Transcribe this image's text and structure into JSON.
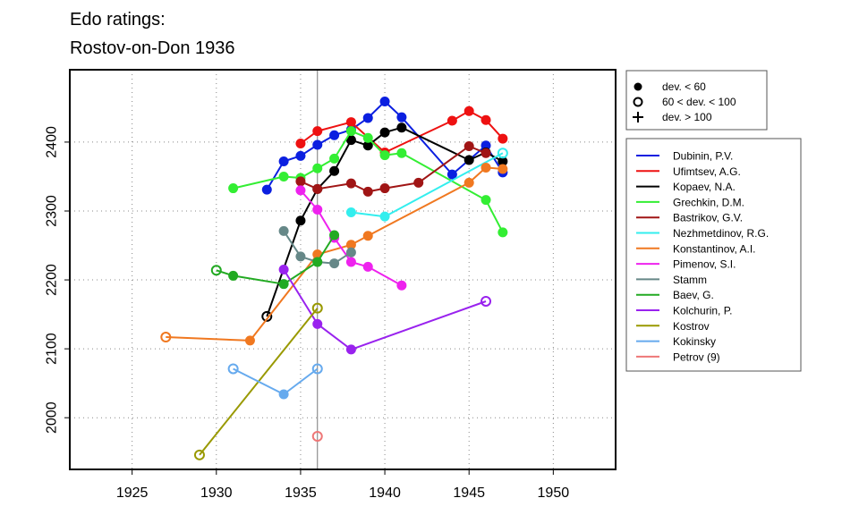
{
  "chart_data": {
    "type": "line",
    "title": [
      "Edo ratings:",
      "Rostov-on-Don 1936"
    ],
    "xlabel": "",
    "ylabel": "",
    "xlim": [
      1921.3,
      1953.7
    ],
    "ylim": [
      1925,
      2505
    ],
    "xticks": [
      1925,
      1930,
      1935,
      1940,
      1945,
      1950
    ],
    "yticks": [
      2000,
      2100,
      2200,
      2300,
      2400
    ],
    "grid": "dotted",
    "reference_line_x": 1936,
    "legend_placement": "right",
    "deviation_legend": [
      {
        "symbol": "filled",
        "label": "dev. < 60"
      },
      {
        "symbol": "open",
        "label": "60 < dev. < 100"
      },
      {
        "symbol": "plus",
        "label": "dev. > 100"
      }
    ],
    "series": [
      {
        "name": "Dubinin, P.V.",
        "color": "#0b1fe0",
        "points": [
          [
            1933,
            2331,
            "f"
          ],
          [
            1934,
            2372,
            "f"
          ],
          [
            1935,
            2380,
            "f"
          ],
          [
            1936,
            2396,
            "f"
          ],
          [
            1937,
            2410,
            "f"
          ],
          [
            1938,
            2418,
            "f"
          ],
          [
            1939,
            2435,
            "f"
          ],
          [
            1940,
            2459,
            "f"
          ],
          [
            1941,
            2436,
            "f"
          ],
          [
            1944,
            2353,
            "f"
          ],
          [
            1946,
            2395,
            "f"
          ],
          [
            1947,
            2356,
            "f"
          ]
        ]
      },
      {
        "name": "Ufimtsev, A.G.",
        "color": "#ee1111",
        "points": [
          [
            1935,
            2398,
            "f"
          ],
          [
            1936,
            2416,
            "f"
          ],
          [
            1938,
            2429,
            "f"
          ],
          [
            1940,
            2385,
            "f"
          ],
          [
            1944,
            2431,
            "f"
          ],
          [
            1945,
            2445,
            "f"
          ],
          [
            1946,
            2432,
            "f"
          ],
          [
            1947,
            2405,
            "f"
          ]
        ]
      },
      {
        "name": "Kopaev, N.A.",
        "color": "#000000",
        "points": [
          [
            1933,
            2147,
            "o"
          ],
          [
            1935,
            2286,
            "f"
          ],
          [
            1936,
            2332,
            "f"
          ],
          [
            1937,
            2358,
            "f"
          ],
          [
            1938,
            2403,
            "f"
          ],
          [
            1939,
            2395,
            "f"
          ],
          [
            1940,
            2414,
            "f"
          ],
          [
            1941,
            2421,
            "f"
          ],
          [
            1945,
            2374,
            "f"
          ],
          [
            1946,
            2385,
            "f"
          ],
          [
            1947,
            2372,
            "f"
          ]
        ]
      },
      {
        "name": "Grechkin, D.M.",
        "color": "#33ee33",
        "points": [
          [
            1931,
            2333,
            "f"
          ],
          [
            1934,
            2350,
            "f"
          ],
          [
            1935,
            2348,
            "f"
          ],
          [
            1936,
            2362,
            "f"
          ],
          [
            1937,
            2376,
            "f"
          ],
          [
            1938,
            2416,
            "f"
          ],
          [
            1939,
            2406,
            "f"
          ],
          [
            1940,
            2381,
            "f"
          ],
          [
            1941,
            2384,
            "f"
          ],
          [
            1946,
            2316,
            "f"
          ],
          [
            1947,
            2269,
            "f"
          ]
        ]
      },
      {
        "name": "Bastrikov, G.V.",
        "color": "#a01515",
        "points": [
          [
            1935,
            2343,
            "f"
          ],
          [
            1936,
            2332,
            "f"
          ],
          [
            1938,
            2340,
            "f"
          ],
          [
            1939,
            2328,
            "f"
          ],
          [
            1940,
            2333,
            "f"
          ],
          [
            1942,
            2341,
            "f"
          ],
          [
            1945,
            2394,
            "f"
          ],
          [
            1946,
            2384,
            "f"
          ]
        ]
      },
      {
        "name": "Nezhmetdinov, R.G.",
        "color": "#33eeee",
        "points": [
          [
            1938,
            2298,
            "f"
          ],
          [
            1940,
            2292,
            "f"
          ],
          [
            1947,
            2384,
            "o"
          ]
        ]
      },
      {
        "name": "Konstantinov, A.I.",
        "color": "#f07820",
        "points": [
          [
            1927,
            2117,
            "o"
          ],
          [
            1932,
            2112,
            "f"
          ],
          [
            1936,
            2237,
            "f"
          ],
          [
            1938,
            2251,
            "f"
          ],
          [
            1939,
            2264,
            "f"
          ],
          [
            1945,
            2341,
            "f"
          ],
          [
            1946,
            2363,
            "f"
          ],
          [
            1947,
            2361,
            "f"
          ]
        ]
      },
      {
        "name": "Pimenov, S.I.",
        "color": "#ee22ee",
        "points": [
          [
            1935,
            2330,
            "f"
          ],
          [
            1936,
            2302,
            "f"
          ],
          [
            1937,
            2261,
            "f"
          ],
          [
            1938,
            2226,
            "f"
          ],
          [
            1939,
            2219,
            "f"
          ],
          [
            1941,
            2192,
            "f"
          ]
        ]
      },
      {
        "name": "Stamm",
        "color": "#668888",
        "points": [
          [
            1934,
            2271,
            "f"
          ],
          [
            1935,
            2234,
            "f"
          ],
          [
            1936,
            2226,
            "f"
          ],
          [
            1937,
            2224,
            "f"
          ],
          [
            1938,
            2240,
            "f"
          ]
        ]
      },
      {
        "name": "Baev, G.",
        "color": "#22aa22",
        "points": [
          [
            1930,
            2214,
            "o"
          ],
          [
            1931,
            2206,
            "f"
          ],
          [
            1934,
            2194,
            "f"
          ],
          [
            1936,
            2226,
            "f"
          ],
          [
            1937,
            2265,
            "f"
          ]
        ]
      },
      {
        "name": "Kolchurin, P.",
        "color": "#9922ee",
        "points": [
          [
            1934,
            2215,
            "f"
          ],
          [
            1936,
            2136,
            "f"
          ],
          [
            1938,
            2099,
            "f"
          ],
          [
            1946,
            2169,
            "o"
          ]
        ]
      },
      {
        "name": "Kostrov",
        "color": "#999900",
        "points": [
          [
            1929,
            1946,
            "o"
          ],
          [
            1936,
            2159,
            "o"
          ]
        ]
      },
      {
        "name": "Kokinsky",
        "color": "#66aaee",
        "points": [
          [
            1931,
            2071,
            "o"
          ],
          [
            1934,
            2034,
            "f"
          ],
          [
            1936,
            2071,
            "o"
          ]
        ]
      },
      {
        "name": "Petrov (9)",
        "color": "#ee7777",
        "points": [
          [
            1936,
            1973,
            "o"
          ]
        ]
      }
    ]
  }
}
